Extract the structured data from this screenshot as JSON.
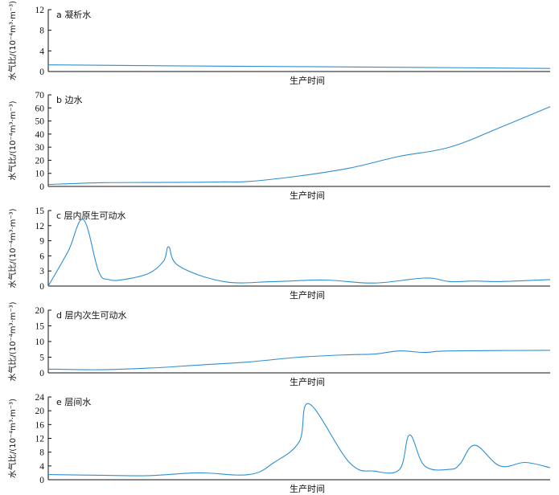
{
  "chart_data": [
    {
      "type": "line",
      "panel_letter": "a",
      "title": "a 凝析水",
      "xlabel": "生产时间",
      "ylabel": "水气比/(10⁻⁴m³·m⁻³)",
      "ylim": [
        0,
        12
      ],
      "yticks": [
        0,
        4,
        8,
        12
      ],
      "color": "#2e8fd0",
      "series": [
        {
          "x": [
            0,
            0.25,
            0.5,
            0.75,
            1.0
          ],
          "y": [
            1.3,
            1.1,
            0.95,
            0.8,
            0.6
          ]
        }
      ]
    },
    {
      "type": "line",
      "panel_letter": "b",
      "title": "b 边水",
      "xlabel": "生产时间",
      "ylabel": "水气比/(10⁻⁴m³·m⁻³)",
      "ylim": [
        0,
        70
      ],
      "yticks": [
        0,
        10,
        20,
        30,
        40,
        50,
        60,
        70
      ],
      "color": "#2e8fd0",
      "series": [
        {
          "x": [
            0,
            0.1,
            0.2,
            0.3,
            0.35,
            0.4,
            0.5,
            0.6,
            0.7,
            0.8,
            0.9,
            1.0
          ],
          "y": [
            1.5,
            2.8,
            3.0,
            3.2,
            3.5,
            3.8,
            8.0,
            14.0,
            23.0,
            30.0,
            45.0,
            61.0
          ]
        }
      ]
    },
    {
      "type": "line",
      "panel_letter": "c",
      "title": "c 层内原生可动水",
      "xlabel": "生产时间",
      "ylabel": "水气比/(10⁻⁴m³·m⁻³)",
      "ylim": [
        0,
        15
      ],
      "yticks": [
        0,
        3,
        6,
        9,
        12,
        15
      ],
      "color": "#2e8fd0",
      "series": [
        {
          "x": [
            0,
            0.04,
            0.07,
            0.1,
            0.12,
            0.15,
            0.2,
            0.23,
            0.24,
            0.26,
            0.35,
            0.45,
            0.55,
            0.65,
            0.75,
            0.8,
            0.85,
            0.9,
            1.0
          ],
          "y": [
            0,
            7.0,
            13.2,
            3.0,
            1.3,
            1.3,
            2.5,
            5.0,
            7.8,
            4.0,
            0.9,
            0.9,
            1.2,
            0.6,
            1.6,
            0.9,
            1.0,
            0.9,
            1.3
          ]
        }
      ]
    },
    {
      "type": "line",
      "panel_letter": "d",
      "title": "d 层内次生可动水",
      "xlabel": "生产时间",
      "ylabel": "水气比/(10⁻⁴m³·m⁻³)",
      "ylim": [
        0,
        20
      ],
      "yticks": [
        0,
        5,
        10,
        15,
        20
      ],
      "color": "#2e8fd0",
      "series": [
        {
          "x": [
            0,
            0.1,
            0.2,
            0.3,
            0.4,
            0.5,
            0.6,
            0.65,
            0.7,
            0.75,
            0.8,
            1.0
          ],
          "y": [
            1.2,
            1.0,
            1.5,
            2.5,
            3.5,
            5.0,
            5.8,
            6.0,
            7.0,
            6.5,
            7.0,
            7.2
          ]
        }
      ]
    },
    {
      "type": "line",
      "panel_letter": "e",
      "title": "e 层间水",
      "xlabel": "生产时间",
      "ylabel": "水气比/(10⁻⁴m³·m⁻³)",
      "ylim": [
        0,
        24
      ],
      "yticks": [
        0,
        4,
        8,
        12,
        16,
        20,
        24
      ],
      "color": "#2e8fd0",
      "series": [
        {
          "x": [
            0,
            0.1,
            0.2,
            0.3,
            0.4,
            0.45,
            0.5,
            0.52,
            0.6,
            0.65,
            0.7,
            0.72,
            0.75,
            0.8,
            0.82,
            0.85,
            0.9,
            0.95,
            1.0
          ],
          "y": [
            1.5,
            1.3,
            1.2,
            2.0,
            1.5,
            5.0,
            11.0,
            22.0,
            5.0,
            2.5,
            3.0,
            13.0,
            4.0,
            3.0,
            4.5,
            10.0,
            4.0,
            5.0,
            3.5
          ]
        }
      ]
    }
  ]
}
